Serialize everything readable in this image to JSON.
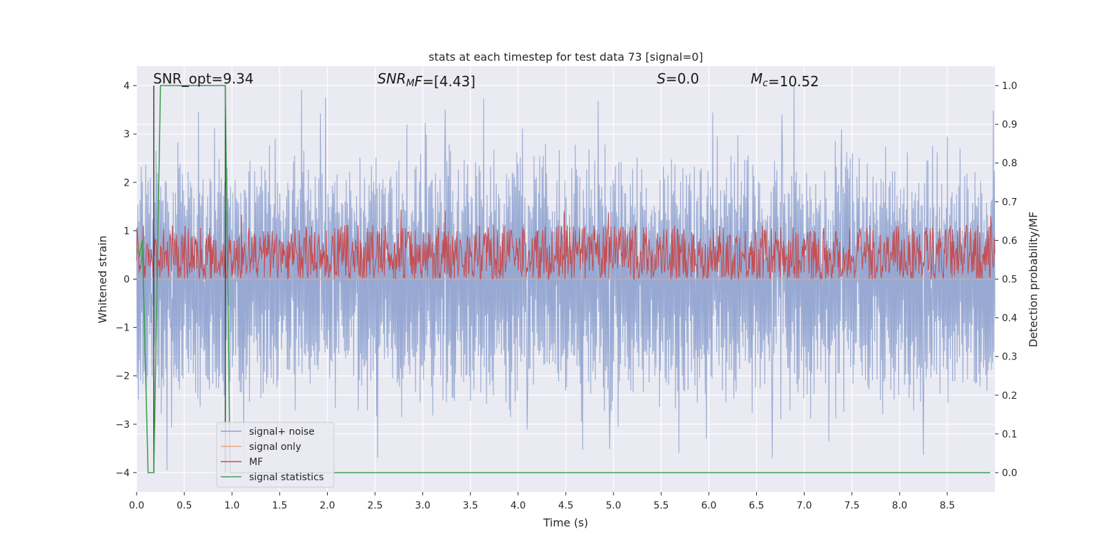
{
  "chart_data": {
    "type": "line",
    "title": "stats at each timestep for test data 73 [signal=0]",
    "xlabel": "Time (s)",
    "ylabel_left": "Whitened strain",
    "ylabel_right": "Detection probability/MF",
    "xlim": [
      0,
      9
    ],
    "ylim_left": [
      -4.4,
      4.4
    ],
    "ylim_right": [
      -0.05,
      1.05
    ],
    "x_ticks": [
      0.0,
      0.5,
      1.0,
      1.5,
      2.0,
      2.5,
      3.0,
      3.5,
      4.0,
      4.5,
      5.0,
      5.5,
      6.0,
      6.5,
      7.0,
      7.5,
      8.0,
      8.5
    ],
    "x_tick_labels": [
      "0.0",
      "0.5",
      "1.0",
      "1.5",
      "2.0",
      "2.5",
      "3.0",
      "3.5",
      "4.0",
      "4.5",
      "5.0",
      "5.5",
      "6.0",
      "6.5",
      "7.0",
      "7.5",
      "8.0",
      "8.5"
    ],
    "y_left_ticks": [
      -4,
      -3,
      -2,
      -1,
      0,
      1,
      2,
      3,
      4
    ],
    "y_left_tick_labels": [
      "−4",
      "−3",
      "−2",
      "−1",
      "0",
      "1",
      "2",
      "3",
      "4"
    ],
    "y_right_ticks": [
      0.0,
      0.1,
      0.2,
      0.3,
      0.4,
      0.5,
      0.6,
      0.7,
      0.8,
      0.9,
      1.0
    ],
    "y_right_tick_labels": [
      "0.0",
      "0.1",
      "0.2",
      "0.3",
      "0.4",
      "0.5",
      "0.6",
      "0.7",
      "0.8",
      "0.9",
      "1.0"
    ],
    "grid": true,
    "legend_placement": "lower-left",
    "annotations": [
      {
        "parts": [
          {
            "text": "SNR_opt=9.34"
          }
        ]
      },
      {
        "parts": [
          {
            "text": "SNR",
            "italic": true
          },
          {
            "text": "M",
            "italic": true,
            "sub": true
          },
          {
            "text": "F",
            "italic": true
          },
          {
            "text": "=[4.43]"
          }
        ]
      },
      {
        "parts": [
          {
            "text": "S",
            "italic": true
          },
          {
            "text": "=0.0"
          }
        ]
      },
      {
        "parts": [
          {
            "text": "M",
            "italic": true
          },
          {
            "text": "c",
            "italic": true,
            "sub": true
          },
          {
            "text": "=10.52"
          }
        ]
      }
    ],
    "series": [
      {
        "name": "signal+ noise",
        "color": "#8ea2cf",
        "axis": "left",
        "kind": "noise",
        "envelope_approx": 2.0,
        "peak_approx": 4.0
      },
      {
        "name": "signal only",
        "color": "#e8a47f",
        "axis": "left",
        "kind": "flat"
      },
      {
        "name": "MF",
        "color": "#c44e52",
        "axis": "right",
        "kind": "noise",
        "range_approx": [
          0.5,
          0.64
        ]
      },
      {
        "name": "signal statistics",
        "color": "#3f9e4e",
        "axis": "right",
        "x": [
          0.0,
          0.03,
          0.06,
          0.12,
          0.18,
          0.25,
          0.93,
          0.98,
          1.02,
          7.8,
          8.95
        ],
        "values": [
          0.58,
          0.56,
          0.6,
          0.0,
          0.0,
          1.0,
          1.0,
          0.0,
          0.0,
          0.0,
          0.0
        ]
      }
    ],
    "vlines": [
      {
        "x": 0.18,
        "color": "#404040",
        "range_right": [
          0.0,
          1.0
        ]
      },
      {
        "x": 0.93,
        "color": "#404040",
        "range_right": [
          0.0,
          1.0
        ]
      }
    ]
  }
}
